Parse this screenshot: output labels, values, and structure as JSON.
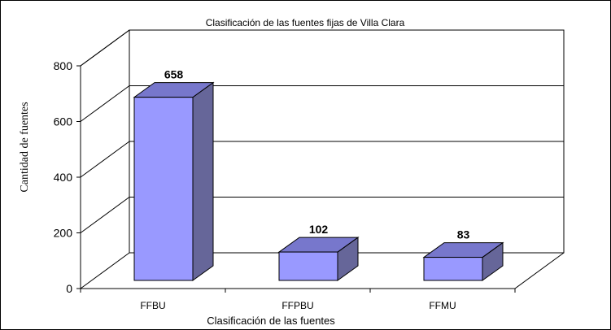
{
  "chart_data": {
    "type": "bar",
    "title": "Clasificación  de las fuentes fijas de Villa Clara",
    "xlabel": "Clasificación de las fuentes",
    "ylabel": "Cantidad  de fuentes",
    "categories": [
      "FFBU",
      "FFPBU",
      "FFMU"
    ],
    "series": [
      {
        "values": [
          658,
          102,
          83
        ]
      }
    ],
    "data_labels": [
      "658",
      "102",
      "83"
    ],
    "yticks": [
      "0",
      "200",
      "400",
      "600",
      "800"
    ],
    "ylim": [
      0,
      800
    ],
    "grid": true,
    "style": "3d-column",
    "colors": {
      "bar_front": "#9999ff",
      "bar_side": "#666699",
      "bar_top": "#7777cc",
      "frame": "#000000"
    }
  }
}
